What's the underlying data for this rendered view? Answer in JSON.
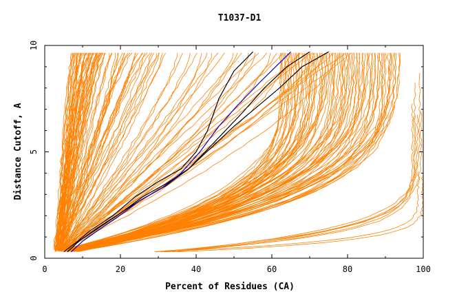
{
  "chart_data": {
    "type": "line",
    "title": "T1037-D1",
    "xlabel": "Percent of Residues (CA)",
    "ylabel": "Distance Cutoff, A",
    "xlim": [
      0,
      100
    ],
    "ylim": [
      0,
      10
    ],
    "x_ticks": [
      "0",
      "20",
      "40",
      "60",
      "80",
      "100"
    ],
    "y_ticks": [
      "0",
      "5",
      "10"
    ],
    "grid": false,
    "legend": "none",
    "colors": {
      "orange": "#ff8000",
      "black": "#000000",
      "blue": "#0000cc"
    },
    "highlight_series": [
      {
        "color": "#000000",
        "points": [
          [
            5,
            0.3
          ],
          [
            8,
            0.7
          ],
          [
            12,
            1.3
          ],
          [
            18,
            2.0
          ],
          [
            24,
            2.9
          ],
          [
            30,
            3.6
          ],
          [
            36,
            4.2
          ],
          [
            40,
            5.0
          ],
          [
            43,
            6.0
          ],
          [
            46,
            7.5
          ],
          [
            50,
            8.8
          ],
          [
            55,
            9.7
          ]
        ]
      },
      {
        "color": "#000000",
        "points": [
          [
            6,
            0.3
          ],
          [
            9,
            0.8
          ],
          [
            13,
            1.3
          ],
          [
            18,
            1.9
          ],
          [
            25,
            2.7
          ],
          [
            32,
            3.4
          ],
          [
            38,
            4.2
          ],
          [
            44,
            5.2
          ],
          [
            50,
            6.2
          ],
          [
            56,
            7.1
          ],
          [
            62,
            8.0
          ],
          [
            68,
            9.0
          ],
          [
            75,
            9.7
          ]
        ]
      },
      {
        "color": "#000000",
        "points": [
          [
            6,
            0.3
          ],
          [
            9,
            0.8
          ],
          [
            14,
            1.4
          ],
          [
            19,
            2.0
          ],
          [
            26,
            2.9
          ],
          [
            32,
            3.5
          ],
          [
            38,
            4.2
          ],
          [
            44,
            5.3
          ],
          [
            52,
            6.8
          ],
          [
            58,
            8.0
          ],
          [
            64,
            9.0
          ],
          [
            70,
            9.7
          ]
        ]
      },
      {
        "color": "#0000cc",
        "points": [
          [
            7,
            0.3
          ],
          [
            10,
            0.8
          ],
          [
            14,
            1.3
          ],
          [
            19,
            1.9
          ],
          [
            25,
            2.7
          ],
          [
            31,
            3.3
          ],
          [
            36,
            4.0
          ],
          [
            41,
            5.0
          ],
          [
            46,
            6.2
          ],
          [
            51,
            7.2
          ],
          [
            57,
            8.3
          ],
          [
            61,
            9.0
          ],
          [
            65,
            9.7
          ]
        ]
      }
    ],
    "orange_bundles": [
      {
        "count": 45,
        "start_x": [
          2.5,
          4.5
        ],
        "end_x": [
          7,
          16
        ],
        "shape": 0.8
      },
      {
        "count": 28,
        "start_x": [
          3,
          5
        ],
        "end_x": [
          16,
          32
        ],
        "shape": 1.0
      },
      {
        "count": 30,
        "start_x": [
          3.5,
          6
        ],
        "end_x": [
          34,
          82
        ],
        "shape": 1.2
      },
      {
        "count": 80,
        "start_x": [
          5,
          9
        ],
        "end_x": [
          62,
          94
        ],
        "shape": 3.6
      },
      {
        "count": 8,
        "start_x": [
          28,
          35
        ],
        "end_x": [
          97,
          100
        ],
        "shape": 7.0
      }
    ]
  }
}
